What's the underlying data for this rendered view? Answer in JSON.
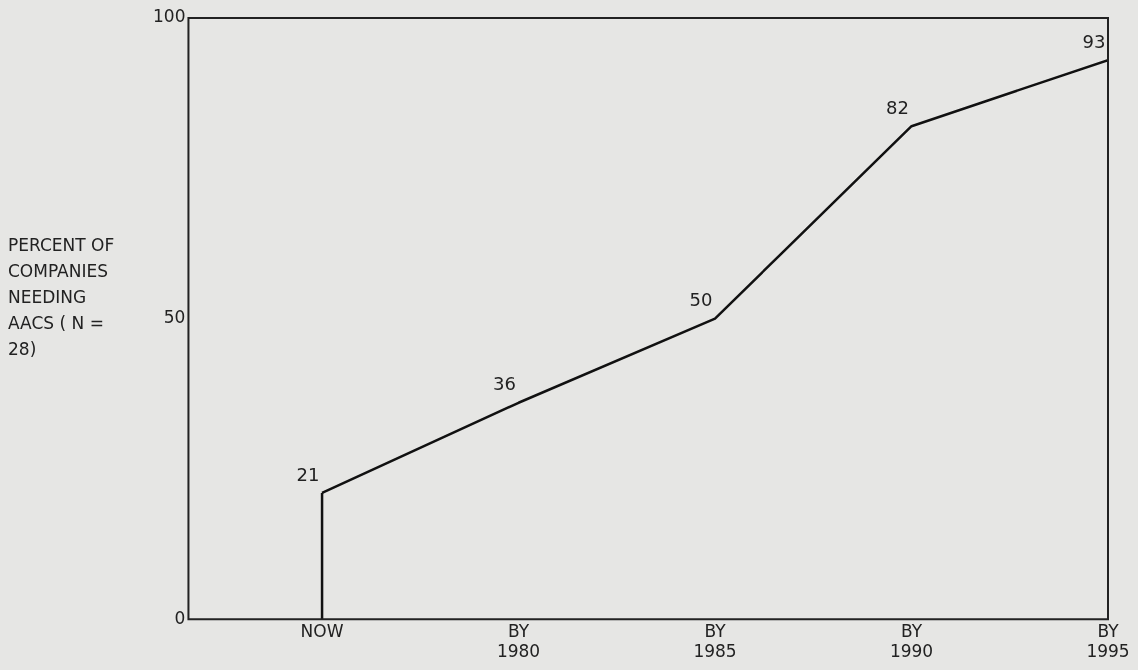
{
  "chart_data": {
    "type": "line",
    "ylabel": "PERCENT OF COMPANIES NEEDING AACS ( N = 28)",
    "categories": [
      "NOW",
      "BY 1980",
      "BY 1985",
      "BY 1990",
      "BY 1995"
    ],
    "series": [
      {
        "color": "#111111",
        "x": [
          "NOW",
          "NOW"
        ],
        "values": [
          0,
          21
        ],
        "value_labels": [
          null,
          null
        ]
      },
      {
        "color": "#111111",
        "values": [
          21,
          36,
          50,
          82,
          93
        ],
        "value_labels": [
          "21",
          "36",
          "50",
          "82",
          "93"
        ]
      }
    ],
    "ylim": [
      0,
      100
    ],
    "yticks": [
      0,
      50,
      100
    ],
    "marker": "none",
    "line_style": "solid",
    "legend": false
  }
}
